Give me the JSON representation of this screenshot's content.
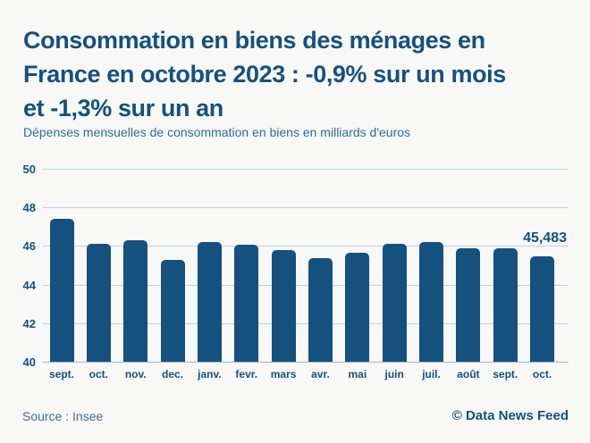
{
  "header": {
    "title_lines": [
      "Consommation en biens des ménages en",
      "France en octobre 2023 : -0,9% sur un mois",
      "et -1,3% sur un an"
    ],
    "subtitle": "Dépenses mensuelles de consommation en biens en milliards d'euros"
  },
  "chart_data": {
    "type": "bar",
    "title": "Consommation en biens des ménages en France en octobre 2023 : -0,9% sur un mois et -1,3% sur un an",
    "subtitle": "Dépenses mensuelles de consommation en biens en milliards d'euros",
    "categories": [
      "sept.",
      "oct.",
      "nov.",
      "dec.",
      "janv.",
      "fevr.",
      "mars",
      "avr.",
      "mai",
      "juin",
      "juil.",
      "août",
      "sept.",
      "oct."
    ],
    "values": [
      47.42,
      46.11,
      46.28,
      45.28,
      46.21,
      46.07,
      45.78,
      45.37,
      45.66,
      46.11,
      46.19,
      45.87,
      45.88,
      45.483
    ],
    "ylabel": "milliards d'euros",
    "ylim": [
      40,
      50
    ],
    "yticks": [
      50,
      48,
      46,
      44,
      42,
      40
    ],
    "grid": true,
    "legend": "none",
    "bar_color": "#15517e",
    "gridline_color": "#c2d1df",
    "annotation": {
      "index": 13,
      "label": "45,483"
    }
  },
  "footer": {
    "source": "Source : Insee",
    "credit": "© Data News Feed"
  },
  "colors": {
    "background": "#f8f8f7",
    "title": "#15517e",
    "subtitle": "#2e6d99",
    "bar": "#15517e",
    "gridline": "#c2d1df",
    "source_text": "#3d6c94"
  }
}
